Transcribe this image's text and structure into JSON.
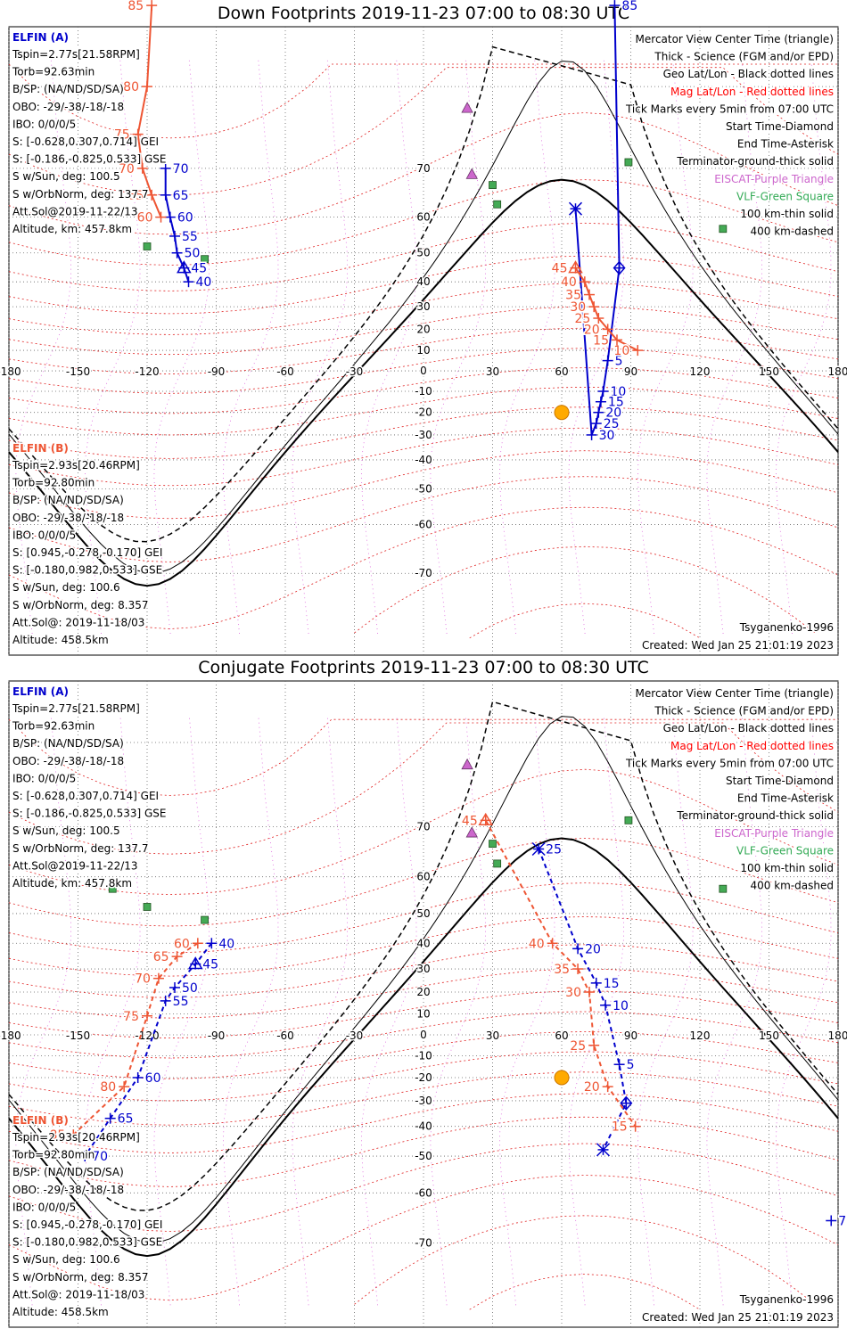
{
  "figure": {
    "created": "Created: Wed Jan 25 21:01:19 2023",
    "model": "Tsyganenko-1996"
  },
  "legend": {
    "lines": [
      {
        "text": "Mercator View Center Time (triangle)",
        "color": "#000000"
      },
      {
        "text": "Thick - Science (FGM and/or EPD)",
        "color": "#000000"
      },
      {
        "text": "Geo Lat/Lon - Black dotted lines",
        "color": "#000000"
      },
      {
        "text": "Mag Lat/Lon - Red dotted lines",
        "color": "#ff0000"
      },
      {
        "text": "Tick Marks every 5min from 07:00 UTC",
        "color": "#000000"
      },
      {
        "text": "Start Time-Diamond",
        "color": "#000000"
      },
      {
        "text": "End Time-Asterisk",
        "color": "#000000"
      },
      {
        "text": "Terminator-ground-thick solid",
        "color": "#000000"
      },
      {
        "text": "EISCAT-Purple Triangle",
        "color": "#cc66cc"
      },
      {
        "text": "VLF-Green Square",
        "color": "#33aa55"
      },
      {
        "text": "100 km-thin solid",
        "color": "#000000"
      },
      {
        "text": "400 km-dashed",
        "color": "#000000"
      }
    ]
  },
  "elfin_a": {
    "name": "ELFIN (A)",
    "color": "#0000cc",
    "lines": [
      "Tspin=2.77s[21.58RPM]",
      "Torb=92.63min",
      "B/SP: (NA/ND/SD/SA)",
      "OBO: -29/-38/-18/-18",
      "IBO: 0/0/0/5",
      "S: [-0.628,0.307,0.714] GEI",
      "S: [-0.186,-0.825,0.533] GSE",
      "S w/Sun, deg: 100.5",
      "S w/OrbNorm, deg: 137.7",
      "Att.Sol@2019-11-22/13",
      "Altitude, km: 457.8km"
    ]
  },
  "elfin_b": {
    "name": "ELFIN (B)",
    "color": "#ee5533",
    "lines": [
      "Tspin=2.93s[20.46RPM]",
      "Torb=92.80min",
      "B/SP: (NA/ND/SD/SA)",
      "OBO: -29/-38/-18/-18",
      "IBO: 0/0/0/5",
      "S: [0.945,-0.278,-0.170] GEI",
      "S: [-0.180,0.982,0.533] GSE",
      "S w/Sun, deg: 100.6",
      "S w/OrbNorm, deg: 8.357",
      "Att.Sol@: 2019-11-18/03",
      "Altitude: 458.5km"
    ]
  },
  "chart_data": [
    {
      "type": "scatter",
      "title": "Down Footprints 2019-11-23 07:00 to 08:30 UTC",
      "xlim": [
        -180,
        180
      ],
      "ylim": [
        -80,
        85
      ],
      "x_ticks": [
        "-180",
        "-150",
        "-120",
        "-90",
        "-60",
        "-30",
        "0",
        "30",
        "60",
        "90",
        "120",
        "150",
        "180"
      ],
      "y_ticks": [
        "70",
        "60",
        "50",
        "40",
        "30",
        "20",
        "10",
        "0",
        "-10",
        "-20",
        "-30",
        "-40",
        "-50",
        "-60",
        "-70"
      ],
      "grid": true,
      "series": [
        {
          "name": "ELFIN (A)",
          "color": "#0000cc",
          "style": "solid",
          "points": [
            {
              "lon": -112,
              "lat": 70,
              "label": "70"
            },
            {
              "lon": -112,
              "lat": 65,
              "label": "65"
            },
            {
              "lon": -110,
              "lat": 60,
              "label": "60"
            },
            {
              "lon": -108,
              "lat": 55,
              "label": "55"
            },
            {
              "lon": -107,
              "lat": 50,
              "label": "50"
            },
            {
              "lon": -104,
              "lat": 45,
              "label": "45",
              "marker": "triangle"
            },
            {
              "lon": -102,
              "lat": 40,
              "label": "40"
            },
            {
              "lon": 83,
              "lat": 85,
              "label": "85"
            },
            {
              "lon": 85,
              "lat": 45,
              "label": "",
              "marker": "diamond"
            },
            {
              "lon": 80,
              "lat": 5,
              "label": "5"
            },
            {
              "lon": 78,
              "lat": -10,
              "label": "10"
            },
            {
              "lon": 77,
              "lat": -15,
              "label": "15"
            },
            {
              "lon": 76,
              "lat": -20,
              "label": "20"
            },
            {
              "lon": 75,
              "lat": -25,
              "label": "25"
            },
            {
              "lon": 73,
              "lat": -30,
              "label": "30"
            },
            {
              "lon": 66,
              "lat": 62,
              "label": "",
              "marker": "asterisk"
            }
          ]
        },
        {
          "name": "ELFIN (B)",
          "color": "#ee5533",
          "style": "solid",
          "points": [
            {
              "lon": -118,
              "lat": 85,
              "label": "85"
            },
            {
              "lon": -120,
              "lat": 80,
              "label": "80"
            },
            {
              "lon": -124,
              "lat": 75,
              "label": "75"
            },
            {
              "lon": -122,
              "lat": 70,
              "label": "70"
            },
            {
              "lon": -118,
              "lat": 65,
              "label": "65"
            },
            {
              "lon": -114,
              "lat": 60,
              "label": "60"
            },
            {
              "lon": 93,
              "lat": 10,
              "label": "10"
            },
            {
              "lon": 84,
              "lat": 15,
              "label": "15"
            },
            {
              "lon": 80,
              "lat": 20,
              "label": "20"
            },
            {
              "lon": 76,
              "lat": 25,
              "label": "25"
            },
            {
              "lon": 74,
              "lat": 30,
              "label": "30"
            },
            {
              "lon": 72,
              "lat": 35,
              "label": "35"
            },
            {
              "lon": 70,
              "lat": 40,
              "label": "40"
            },
            {
              "lon": 66,
              "lat": 45,
              "label": "45",
              "marker": "triangle"
            }
          ]
        }
      ],
      "stations": {
        "eiscat": [
          {
            "lon": 19,
            "lat": 78
          },
          {
            "lon": 21,
            "lat": 69
          }
        ],
        "vlf": [
          {
            "lon": 30,
            "lat": 67
          },
          {
            "lon": 32,
            "lat": 63
          },
          {
            "lon": -135,
            "lat": 57
          },
          {
            "lon": -120,
            "lat": 52
          },
          {
            "lon": -95,
            "lat": 48
          },
          {
            "lon": 89,
            "lat": 71
          },
          {
            "lon": 130,
            "lat": 57
          }
        ]
      },
      "sun": {
        "lon": 60,
        "lat": -20
      }
    },
    {
      "type": "scatter",
      "title": "Conjugate Footprints 2019-11-23 07:00 to 08:30 UTC",
      "xlim": [
        -180,
        180
      ],
      "ylim": [
        -80,
        85
      ],
      "x_ticks": [
        "-180",
        "-150",
        "-120",
        "-90",
        "-60",
        "-30",
        "0",
        "30",
        "60",
        "90",
        "120",
        "150",
        "180"
      ],
      "y_ticks": [
        "70",
        "60",
        "50",
        "40",
        "30",
        "20",
        "10",
        "0",
        "-10",
        "-20",
        "-30",
        "-40",
        "-50",
        "-60",
        "-70"
      ],
      "grid": true,
      "series": [
        {
          "name": "ELFIN (A)",
          "color": "#0000cc",
          "style": "dashed",
          "points": [
            {
              "lon": -92,
              "lat": 40,
              "label": "40"
            },
            {
              "lon": -99,
              "lat": 32,
              "label": "45",
              "marker": "triangle"
            },
            {
              "lon": -108,
              "lat": 22,
              "label": "50"
            },
            {
              "lon": -112,
              "lat": 16,
              "label": "55"
            },
            {
              "lon": -124,
              "lat": -20,
              "label": "60"
            },
            {
              "lon": -136,
              "lat": -37,
              "label": "65"
            },
            {
              "lon": -147,
              "lat": -50,
              "label": "70"
            },
            {
              "lon": 50,
              "lat": 66,
              "label": "25",
              "marker": "asterisk"
            },
            {
              "lon": 67,
              "lat": 38,
              "label": "20"
            },
            {
              "lon": 75,
              "lat": 24,
              "label": "15"
            },
            {
              "lon": 79,
              "lat": 14,
              "label": "10"
            },
            {
              "lon": 85,
              "lat": -14,
              "label": "5"
            },
            {
              "lon": 88,
              "lat": -31,
              "label": "",
              "marker": "diamond"
            },
            {
              "lon": 78,
              "lat": -48,
              "label": "",
              "marker": "asterisk"
            },
            {
              "lon": 177,
              "lat": -66,
              "label": "75"
            }
          ]
        },
        {
          "name": "ELFIN (B)",
          "color": "#ee5533",
          "style": "dashed",
          "points": [
            {
              "lon": 27,
              "lat": 71,
              "label": "45",
              "marker": "triangle"
            },
            {
              "lon": 56,
              "lat": 40,
              "label": "40"
            },
            {
              "lon": 67,
              "lat": 30,
              "label": "35"
            },
            {
              "lon": 72,
              "lat": 20,
              "label": "30"
            },
            {
              "lon": 74,
              "lat": -5,
              "label": "25"
            },
            {
              "lon": 80,
              "lat": -24,
              "label": "20"
            },
            {
              "lon": 92,
              "lat": -40,
              "label": "15"
            },
            {
              "lon": -98,
              "lat": 40,
              "label": "60"
            },
            {
              "lon": -107,
              "lat": 35,
              "label": "65"
            },
            {
              "lon": -115,
              "lat": 26,
              "label": "70"
            },
            {
              "lon": -120,
              "lat": 9,
              "label": "75"
            },
            {
              "lon": -130,
              "lat": -24,
              "label": "80"
            },
            {
              "lon": -152,
              "lat": -43,
              "label": "85"
            }
          ]
        }
      ],
      "stations": {
        "eiscat": [
          {
            "lon": 19,
            "lat": 78
          },
          {
            "lon": 21,
            "lat": 69
          }
        ],
        "vlf": [
          {
            "lon": 30,
            "lat": 67
          },
          {
            "lon": 32,
            "lat": 63
          },
          {
            "lon": -135,
            "lat": 57
          },
          {
            "lon": -120,
            "lat": 52
          },
          {
            "lon": -95,
            "lat": 48
          },
          {
            "lon": 89,
            "lat": 71
          },
          {
            "lon": 130,
            "lat": 57
          }
        ]
      },
      "sun": {
        "lon": 60,
        "lat": -20
      }
    }
  ]
}
